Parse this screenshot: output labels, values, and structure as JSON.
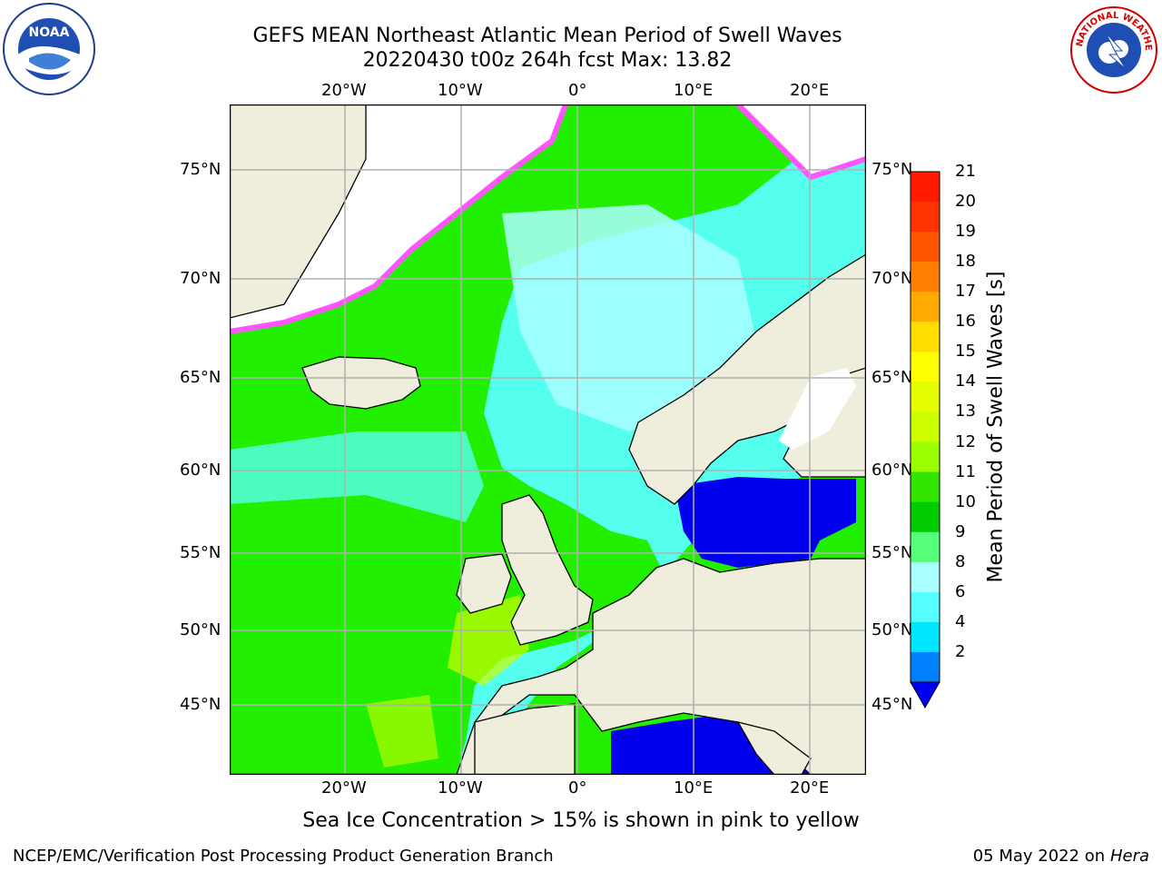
{
  "title": {
    "line1": "GEFS MEAN Northeast Atlantic Mean Period of Swell Waves",
    "line2": "20220430 t00z 264h fcst   Max: 13.82"
  },
  "lon_labels": [
    "20°W",
    "10°W",
    "0°",
    "10°E",
    "20°E"
  ],
  "lat_labels": [
    "75°N",
    "70°N",
    "65°N",
    "60°N",
    "55°N",
    "50°N",
    "45°N"
  ],
  "colorbar": {
    "label": "Mean Period of Swell Waves [s]",
    "ticks": [
      "21",
      "20",
      "19",
      "18",
      "17",
      "16",
      "15",
      "14",
      "13",
      "12",
      "11",
      "10",
      "9",
      "8",
      "6",
      "4",
      "2"
    ],
    "colors": [
      "#ff1a00",
      "#ff3300",
      "#ff5500",
      "#ff8000",
      "#ffaa00",
      "#ffdd00",
      "#ffff00",
      "#e6ff00",
      "#ccff00",
      "#99ff00",
      "#33e600",
      "#00cc00",
      "#55ff77",
      "#aaffff",
      "#55ffff",
      "#00e6ff",
      "#0080ff"
    ],
    "under_color": "#0000ee"
  },
  "map_colors": {
    "land": "#efeedd",
    "ice": "#ffffff",
    "ocean_high": "#22ee00",
    "ocean_mid": "#55ffee",
    "ocean_low": "#0000ee",
    "ice_edge": "#ff55ff",
    "grid": "#b0b0b0"
  },
  "note": "Sea Ice Concentration > 15% is shown in pink to yellow",
  "footer": {
    "left": "NCEP/EMC/Verification Post Processing Product Generation Branch",
    "date": "05 May 2022 on",
    "machine": "Hera"
  },
  "logos": {
    "noaa_text": "NOAA",
    "nws_text": "NATIONAL WEATHER SERVICE"
  }
}
